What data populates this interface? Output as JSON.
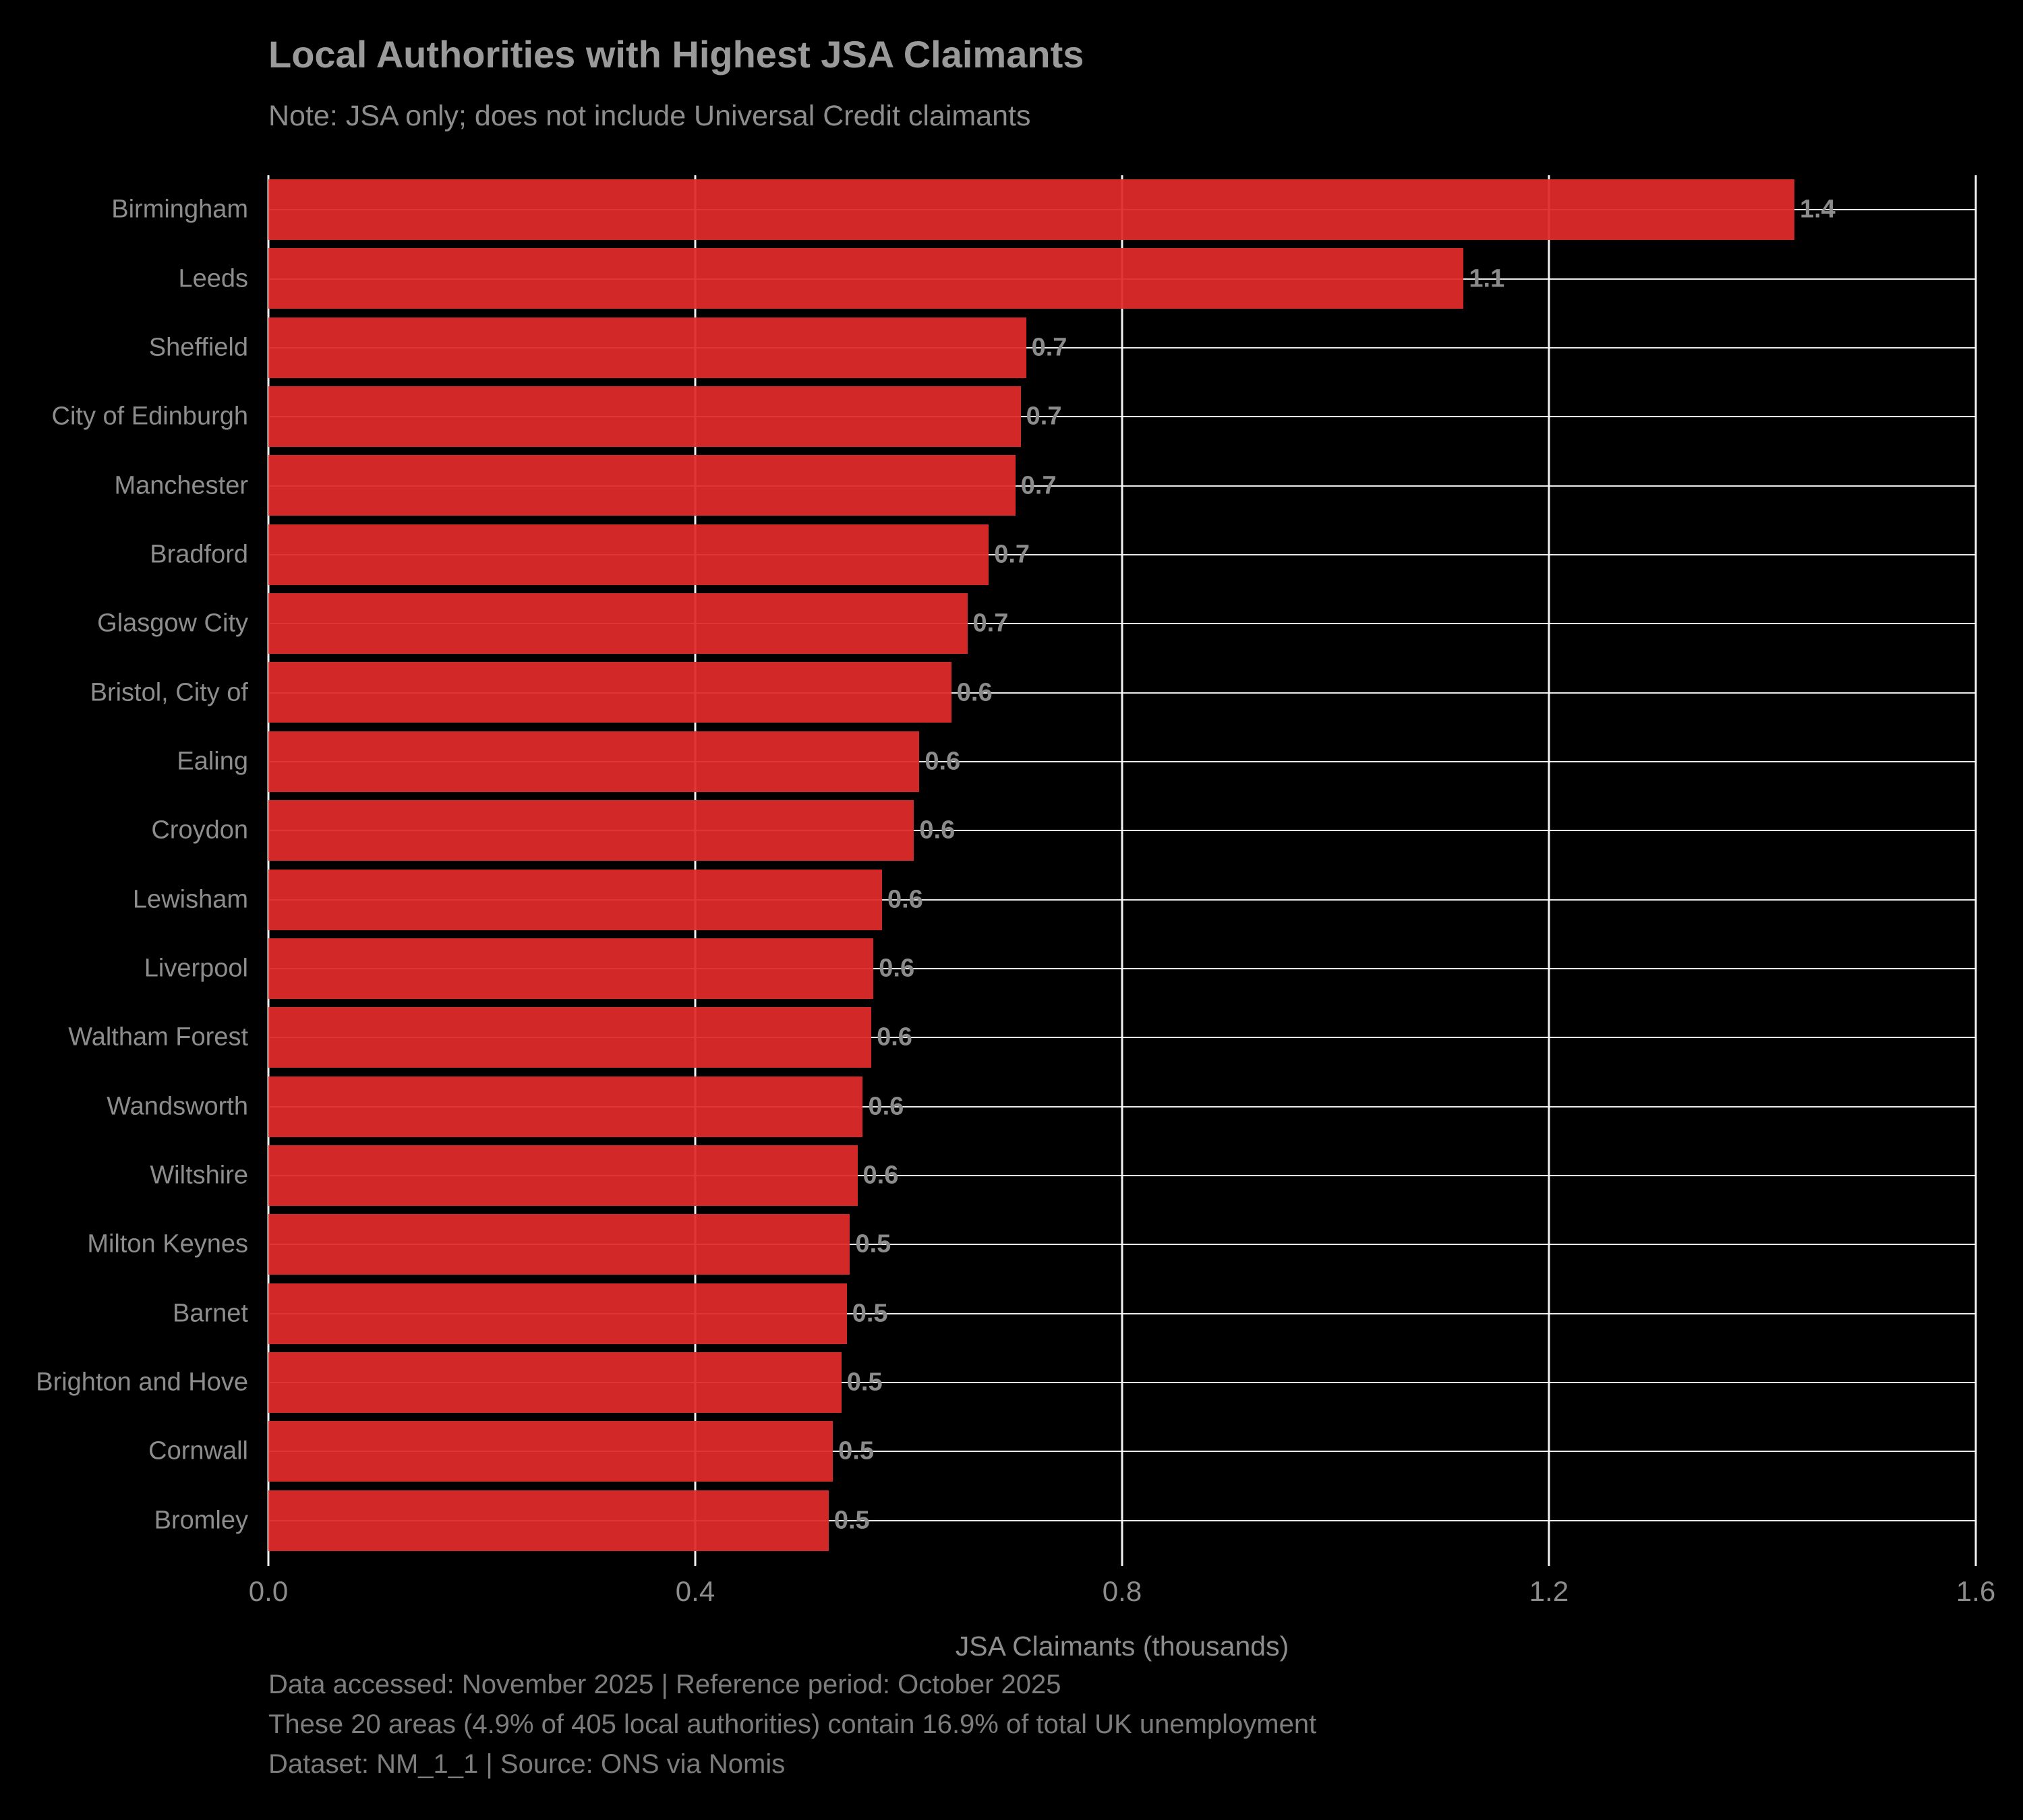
{
  "title": "Local Authorities with Highest JSA Claimants",
  "subtitle": "Note: JSA only; does not include Universal Credit claimants",
  "colors": {
    "background": "#000000",
    "bar": "#d22a28",
    "gridline": "#f2f2f2",
    "title_text": "#9a9a9a",
    "axis_text": "#8d8d8d",
    "value_label_text": "#8b8b8b",
    "footer_text": "#7d7d7d"
  },
  "chart_data": {
    "type": "bar",
    "orientation": "horizontal",
    "title": "Local Authorities with Highest JSA Claimants",
    "subtitle": "Note: JSA only; does not include Universal Credit claimants",
    "xlabel": "JSA Claimants (thousands)",
    "ylabel": "",
    "xlim": [
      0,
      1.6
    ],
    "grid": true,
    "xticks": [
      0.0,
      0.4,
      0.8,
      1.2,
      1.6
    ],
    "xtick_labels": [
      "0.0",
      "0.4",
      "0.8",
      "1.2",
      "1.6"
    ],
    "categories": [
      "Birmingham",
      "Leeds",
      "Sheffield",
      "City of Edinburgh",
      "Manchester",
      "Bradford",
      "Glasgow City",
      "Bristol, City of",
      "Ealing",
      "Croydon",
      "Lewisham",
      "Liverpool",
      "Waltham Forest",
      "Wandsworth",
      "Wiltshire",
      "Milton Keynes",
      "Barnet",
      "Brighton and Hove",
      "Cornwall",
      "Bromley"
    ],
    "values": [
      1.43,
      1.12,
      0.71,
      0.705,
      0.7,
      0.675,
      0.655,
      0.64,
      0.61,
      0.605,
      0.575,
      0.567,
      0.565,
      0.557,
      0.552,
      0.545,
      0.542,
      0.537,
      0.529,
      0.525
    ],
    "bar_labels": [
      "1.4",
      "1.1",
      "0.7",
      "0.7",
      "0.7",
      "0.7",
      "0.7",
      "0.6",
      "0.6",
      "0.6",
      "0.6",
      "0.6",
      "0.6",
      "0.6",
      "0.6",
      "0.5",
      "0.5",
      "0.5",
      "0.5",
      "0.5"
    ]
  },
  "footer": [
    "Data accessed: November 2025 | Reference period: October 2025",
    "These 20 areas (4.9% of 405 local authorities) contain 16.9% of total UK unemployment",
    "Dataset: NM_1_1 | Source: ONS via Nomis"
  ]
}
